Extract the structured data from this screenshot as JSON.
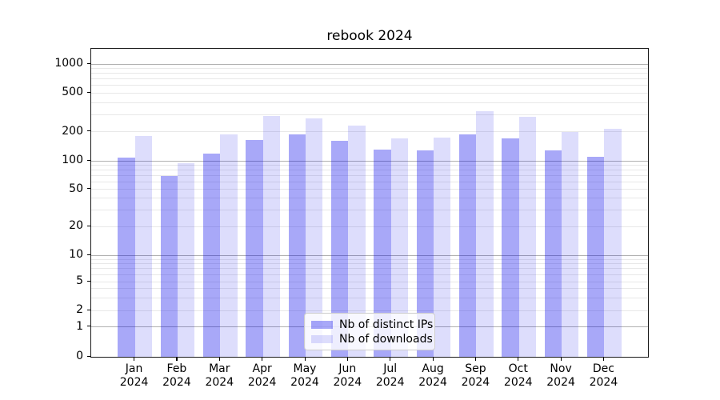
{
  "title": "rebook 2024",
  "chart_data": {
    "type": "bar",
    "title": "rebook 2024",
    "categories": [
      "Jan",
      "Feb",
      "Mar",
      "Apr",
      "May",
      "Jun",
      "Jul",
      "Aug",
      "Sep",
      "Oct",
      "Nov",
      "Dec"
    ],
    "category_year": "2024",
    "series": [
      {
        "name": "Nb of distinct IPs",
        "color": "rgba(0,0,235,0.34)",
        "color_hex_on_white": "#a8a8f8",
        "values": [
          108,
          69,
          118,
          163,
          186,
          160,
          130,
          127,
          188,
          170,
          129,
          111
        ]
      },
      {
        "name": "Nb of downloads",
        "color": "rgba(0,0,235,0.135)",
        "color_hex_on_white": "#dcdcfa",
        "values": [
          180,
          95,
          188,
          288,
          276,
          230,
          172,
          174,
          325,
          283,
          197,
          216
        ]
      }
    ],
    "yscale": "symlog",
    "yticks": [
      {
        "value": 0,
        "label": "0"
      },
      {
        "value": 1,
        "label": "1"
      },
      {
        "value": 2,
        "label": "2"
      },
      {
        "value": 5,
        "label": "5"
      },
      {
        "value": 10,
        "label": "10"
      },
      {
        "value": 20,
        "label": "20"
      },
      {
        "value": 50,
        "label": "50"
      },
      {
        "value": 100,
        "label": "100"
      },
      {
        "value": 200,
        "label": "200"
      },
      {
        "value": 500,
        "label": "500"
      },
      {
        "value": 1000,
        "label": "1000"
      }
    ],
    "ylim": [
      0,
      1400
    ],
    "grid": true,
    "legend_position": "lower center",
    "grid_major_color": "#b0b0b0",
    "grid_minor_color": "#e8e8e8"
  }
}
